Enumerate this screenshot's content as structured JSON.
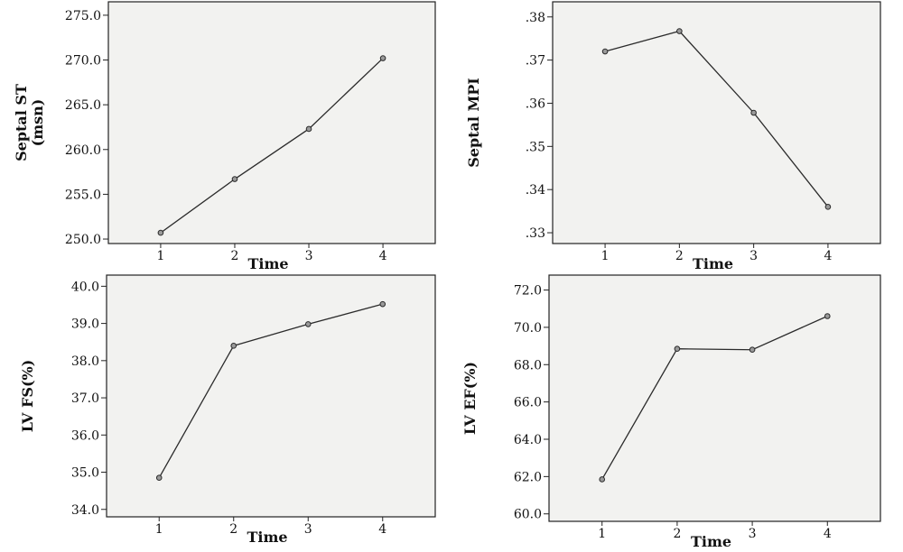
{
  "colors": {
    "plot_background": "#f2f2f0",
    "line": "#2b2b2b",
    "marker_fill": "#9a9a9a",
    "frame": "#222222"
  },
  "chart_data": [
    {
      "type": "line",
      "x": [
        1,
        2,
        3,
        4
      ],
      "values": [
        250.7,
        256.7,
        262.3,
        270.2
      ],
      "xlabel": "Time",
      "ylabel": [
        "Septal ST",
        "(msn)"
      ],
      "ylim": [
        249.5,
        276.5
      ],
      "yticks": [
        250.0,
        255.0,
        260.0,
        265.0,
        270.0,
        275.0
      ],
      "ytick_labels": [
        "250.0",
        "255.0",
        "260.0",
        "265.0",
        "270.0",
        "275.0"
      ],
      "xticks": [
        1,
        2,
        3,
        4
      ],
      "xtick_labels": [
        "1",
        "2",
        "3",
        "4"
      ],
      "grid": false
    },
    {
      "type": "line",
      "x": [
        1,
        2,
        3,
        4
      ],
      "values": [
        0.372,
        0.3767,
        0.3578,
        0.336
      ],
      "xlabel": "Time",
      "ylabel": [
        "Septal MPI"
      ],
      "ylim": [
        0.3275,
        0.3835
      ],
      "yticks": [
        0.33,
        0.34,
        0.35,
        0.36,
        0.37,
        0.38
      ],
      "ytick_labels": [
        ".33",
        ".34",
        ".35",
        ".36",
        ".37",
        ".38"
      ],
      "xticks": [
        1,
        2,
        3,
        4
      ],
      "xtick_labels": [
        "1",
        "2",
        "3",
        "4"
      ],
      "grid": false
    },
    {
      "type": "line",
      "x": [
        1,
        2,
        3,
        4
      ],
      "values": [
        34.85,
        38.4,
        38.98,
        39.52
      ],
      "xlabel": "Time",
      "ylabel": [
        "LV FS(%)"
      ],
      "ylim": [
        33.8,
        40.3
      ],
      "yticks": [
        34.0,
        35.0,
        36.0,
        37.0,
        38.0,
        39.0,
        40.0
      ],
      "ytick_labels": [
        "34.0",
        "35.0",
        "36.0",
        "37.0",
        "38.0",
        "39.0",
        "40.0"
      ],
      "xticks": [
        1,
        2,
        3,
        4
      ],
      "xtick_labels": [
        "1",
        "2",
        "3",
        "4"
      ],
      "grid": false
    },
    {
      "type": "line",
      "x": [
        1,
        2,
        3,
        4
      ],
      "values": [
        61.85,
        68.85,
        68.8,
        70.6
      ],
      "xlabel": "Time",
      "ylabel": [
        "LV EF(%)"
      ],
      "ylim": [
        59.6,
        72.8
      ],
      "yticks": [
        60.0,
        62.0,
        64.0,
        66.0,
        68.0,
        70.0,
        72.0
      ],
      "ytick_labels": [
        "60.0",
        "62.0",
        "64.0",
        "66.0",
        "68.0",
        "70.0",
        "72.0"
      ],
      "xticks": [
        1,
        2,
        3,
        4
      ],
      "xtick_labels": [
        "1",
        "2",
        "3",
        "4"
      ],
      "grid": false
    }
  ]
}
